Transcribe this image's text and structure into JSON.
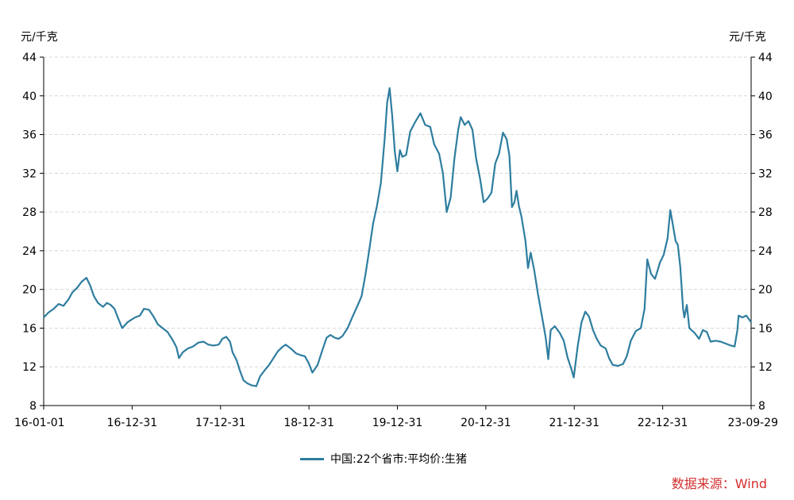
{
  "chart_data": {
    "type": "line",
    "y_unit_left": "元/千克",
    "y_unit_right": "元/千克",
    "ylim": [
      8,
      44
    ],
    "y_ticks": [
      8,
      12,
      16,
      20,
      24,
      28,
      32,
      36,
      40,
      44
    ],
    "x_ticks": [
      "16-01-01",
      "16-12-31",
      "17-12-31",
      "18-12-31",
      "19-12-31",
      "20-12-31",
      "21-12-31",
      "22-12-31",
      "23-09-29"
    ],
    "x_range": [
      "2016-01-01",
      "2023-09-29"
    ],
    "grid": "horizontal-dashed",
    "legend_position": "bottom-center",
    "series": [
      {
        "name": "中国:22个省市:平均价:生猪",
        "color": "#2E7D9F",
        "points": [
          [
            "2016-01-01",
            17.1
          ],
          [
            "2016-01-20",
            17.6
          ],
          [
            "2016-02-10",
            18.0
          ],
          [
            "2016-03-01",
            18.5
          ],
          [
            "2016-03-20",
            18.3
          ],
          [
            "2016-04-10",
            19.0
          ],
          [
            "2016-04-25",
            19.7
          ],
          [
            "2016-05-15",
            20.2
          ],
          [
            "2016-06-01",
            20.8
          ],
          [
            "2016-06-20",
            21.2
          ],
          [
            "2016-07-05",
            20.4
          ],
          [
            "2016-07-20",
            19.3
          ],
          [
            "2016-08-05",
            18.6
          ],
          [
            "2016-08-25",
            18.2
          ],
          [
            "2016-09-10",
            18.6
          ],
          [
            "2016-09-25",
            18.4
          ],
          [
            "2016-10-10",
            18.0
          ],
          [
            "2016-10-25",
            17.0
          ],
          [
            "2016-11-10",
            16.0
          ],
          [
            "2016-12-01",
            16.6
          ],
          [
            "2016-12-31",
            17.1
          ],
          [
            "2017-01-20",
            17.3
          ],
          [
            "2017-02-05",
            18.0
          ],
          [
            "2017-02-25",
            17.9
          ],
          [
            "2017-03-15",
            17.2
          ],
          [
            "2017-04-01",
            16.4
          ],
          [
            "2017-04-20",
            16.0
          ],
          [
            "2017-05-10",
            15.6
          ],
          [
            "2017-05-30",
            14.8
          ],
          [
            "2017-06-15",
            14.0
          ],
          [
            "2017-06-25",
            12.9
          ],
          [
            "2017-07-10",
            13.5
          ],
          [
            "2017-07-30",
            13.9
          ],
          [
            "2017-08-20",
            14.1
          ],
          [
            "2017-09-10",
            14.5
          ],
          [
            "2017-10-01",
            14.6
          ],
          [
            "2017-10-20",
            14.3
          ],
          [
            "2017-11-10",
            14.2
          ],
          [
            "2017-12-01",
            14.3
          ],
          [
            "2017-12-15",
            14.9
          ],
          [
            "2017-12-31",
            15.1
          ],
          [
            "2018-01-15",
            14.6
          ],
          [
            "2018-01-25",
            13.5
          ],
          [
            "2018-02-10",
            12.7
          ],
          [
            "2018-02-25",
            11.5
          ],
          [
            "2018-03-10",
            10.6
          ],
          [
            "2018-03-25",
            10.3
          ],
          [
            "2018-04-10",
            10.1
          ],
          [
            "2018-04-30",
            10.0
          ],
          [
            "2018-05-15",
            11.0
          ],
          [
            "2018-06-01",
            11.6
          ],
          [
            "2018-06-20",
            12.2
          ],
          [
            "2018-07-10",
            13.0
          ],
          [
            "2018-07-25",
            13.6
          ],
          [
            "2018-08-10",
            14.0
          ],
          [
            "2018-08-25",
            14.3
          ],
          [
            "2018-09-15",
            13.9
          ],
          [
            "2018-10-05",
            13.4
          ],
          [
            "2018-10-25",
            13.2
          ],
          [
            "2018-11-10",
            13.1
          ],
          [
            "2018-11-25",
            12.4
          ],
          [
            "2018-12-10",
            11.4
          ],
          [
            "2018-12-31",
            12.2
          ],
          [
            "2019-01-20",
            13.8
          ],
          [
            "2019-02-05",
            15.0
          ],
          [
            "2019-02-20",
            15.3
          ],
          [
            "2019-03-10",
            15.0
          ],
          [
            "2019-03-25",
            14.9
          ],
          [
            "2019-04-10",
            15.2
          ],
          [
            "2019-04-30",
            16.0
          ],
          [
            "2019-05-20",
            17.2
          ],
          [
            "2019-06-10",
            18.4
          ],
          [
            "2019-06-25",
            19.3
          ],
          [
            "2019-07-10",
            21.5
          ],
          [
            "2019-07-25",
            24.0
          ],
          [
            "2019-08-10",
            26.8
          ],
          [
            "2019-08-25",
            28.6
          ],
          [
            "2019-09-10",
            31.0
          ],
          [
            "2019-09-25",
            35.5
          ],
          [
            "2019-10-05",
            39.3
          ],
          [
            "2019-10-15",
            40.8
          ],
          [
            "2019-10-25",
            38.0
          ],
          [
            "2019-11-05",
            34.2
          ],
          [
            "2019-11-15",
            32.2
          ],
          [
            "2019-11-25",
            34.4
          ],
          [
            "2019-12-05",
            33.7
          ],
          [
            "2019-12-20",
            33.9
          ],
          [
            "2020-01-05",
            36.3
          ],
          [
            "2020-01-25",
            37.3
          ],
          [
            "2020-02-15",
            38.2
          ],
          [
            "2020-03-05",
            37.0
          ],
          [
            "2020-03-25",
            36.8
          ],
          [
            "2020-04-10",
            35.0
          ],
          [
            "2020-04-30",
            34.0
          ],
          [
            "2020-05-15",
            32.0
          ],
          [
            "2020-05-30",
            28.0
          ],
          [
            "2020-06-15",
            29.5
          ],
          [
            "2020-06-30",
            33.5
          ],
          [
            "2020-07-15",
            36.5
          ],
          [
            "2020-07-25",
            37.8
          ],
          [
            "2020-08-10",
            37.0
          ],
          [
            "2020-08-25",
            37.4
          ],
          [
            "2020-09-10",
            36.5
          ],
          [
            "2020-09-25",
            33.5
          ],
          [
            "2020-10-10",
            31.5
          ],
          [
            "2020-10-25",
            29.0
          ],
          [
            "2020-11-10",
            29.4
          ],
          [
            "2020-11-25",
            30.0
          ],
          [
            "2020-12-10",
            33.0
          ],
          [
            "2020-12-25",
            34.0
          ],
          [
            "2021-01-10",
            36.2
          ],
          [
            "2021-01-25",
            35.5
          ],
          [
            "2021-02-05",
            33.8
          ],
          [
            "2021-02-15",
            28.5
          ],
          [
            "2021-02-25",
            29.0
          ],
          [
            "2021-03-05",
            30.2
          ],
          [
            "2021-03-15",
            28.6
          ],
          [
            "2021-03-25",
            27.5
          ],
          [
            "2021-04-10",
            25.0
          ],
          [
            "2021-04-20",
            22.2
          ],
          [
            "2021-05-01",
            23.8
          ],
          [
            "2021-05-15",
            22.0
          ],
          [
            "2021-05-30",
            19.5
          ],
          [
            "2021-06-15",
            17.2
          ],
          [
            "2021-06-30",
            15.0
          ],
          [
            "2021-07-10",
            12.8
          ],
          [
            "2021-07-20",
            15.8
          ],
          [
            "2021-08-05",
            16.2
          ],
          [
            "2021-08-25",
            15.5
          ],
          [
            "2021-09-10",
            14.7
          ],
          [
            "2021-09-25",
            13.0
          ],
          [
            "2021-10-10",
            11.8
          ],
          [
            "2021-10-20",
            10.9
          ],
          [
            "2021-11-05",
            14.2
          ],
          [
            "2021-11-20",
            16.6
          ],
          [
            "2021-12-05",
            17.7
          ],
          [
            "2021-12-20",
            17.2
          ],
          [
            "2022-01-05",
            15.8
          ],
          [
            "2022-01-20",
            14.9
          ],
          [
            "2022-02-05",
            14.2
          ],
          [
            "2022-02-25",
            13.9
          ],
          [
            "2022-03-10",
            12.9
          ],
          [
            "2022-03-25",
            12.2
          ],
          [
            "2022-04-15",
            12.1
          ],
          [
            "2022-05-05",
            12.3
          ],
          [
            "2022-05-20",
            13.1
          ],
          [
            "2022-06-05",
            14.7
          ],
          [
            "2022-06-25",
            15.7
          ],
          [
            "2022-07-15",
            16.0
          ],
          [
            "2022-07-30",
            18.0
          ],
          [
            "2022-08-10",
            23.1
          ],
          [
            "2022-08-25",
            21.6
          ],
          [
            "2022-09-10",
            21.1
          ],
          [
            "2022-09-30",
            22.8
          ],
          [
            "2022-10-15",
            23.6
          ],
          [
            "2022-10-30",
            25.3
          ],
          [
            "2022-11-10",
            28.2
          ],
          [
            "2022-11-20",
            26.7
          ],
          [
            "2022-12-01",
            25.0
          ],
          [
            "2022-12-10",
            24.6
          ],
          [
            "2022-12-20",
            22.3
          ],
          [
            "2022-12-31",
            18.0
          ],
          [
            "2023-01-05",
            17.1
          ],
          [
            "2023-01-15",
            18.4
          ],
          [
            "2023-01-25",
            16.0
          ],
          [
            "2023-02-15",
            15.5
          ],
          [
            "2023-03-05",
            14.9
          ],
          [
            "2023-03-20",
            15.8
          ],
          [
            "2023-04-05",
            15.6
          ],
          [
            "2023-04-20",
            14.6
          ],
          [
            "2023-05-10",
            14.7
          ],
          [
            "2023-05-30",
            14.6
          ],
          [
            "2023-06-20",
            14.4
          ],
          [
            "2023-07-10",
            14.2
          ],
          [
            "2023-07-25",
            14.1
          ],
          [
            "2023-08-05",
            15.8
          ],
          [
            "2023-08-10",
            17.3
          ],
          [
            "2023-08-25",
            17.1
          ],
          [
            "2023-09-10",
            17.3
          ],
          [
            "2023-09-29",
            16.6
          ]
        ]
      }
    ]
  },
  "source": "数据来源：Wind"
}
